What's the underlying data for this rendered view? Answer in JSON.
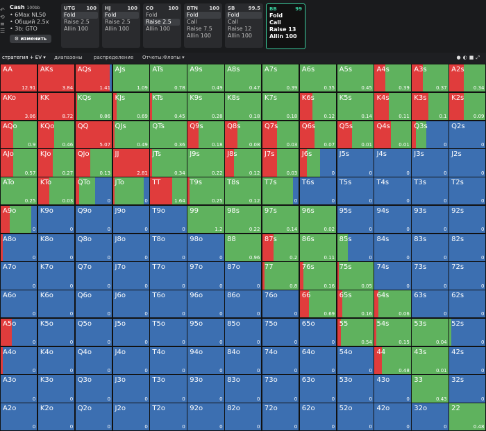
{
  "colors": {
    "raise": "#e03c3c",
    "call": "#5fb25e",
    "fold": "#3c6fb1"
  },
  "left_icons": [
    "undo-icon",
    "history-icon",
    "layers-icon",
    "menu-icon"
  ],
  "sim": {
    "title": "Cash",
    "stack": "100bb",
    "lines": [
      "• 6Max NL50",
      "• Общий 2.5x",
      "• 3b: GTO"
    ],
    "change": "изменить"
  },
  "positions": [
    {
      "name": "UTG",
      "stack": "100",
      "actions": [
        "Fold",
        "Raise 2.5",
        "Allin 100"
      ],
      "sel": 0
    },
    {
      "name": "HJ",
      "stack": "100",
      "actions": [
        "Fold",
        "Raise 2.5",
        "Allin 100"
      ],
      "sel": 0
    },
    {
      "name": "CO",
      "stack": "100",
      "actions": [
        "Fold",
        "Raise 2.5",
        "Allin 100"
      ],
      "sel": 1
    },
    {
      "name": "BTN",
      "stack": "100",
      "actions": [
        "Fold",
        "Call",
        "Raise 7.5",
        "Allin 100"
      ],
      "sel": 0
    },
    {
      "name": "SB",
      "stack": "99.5",
      "actions": [
        "Fold",
        "Call",
        "Raise 12",
        "Allin 100"
      ],
      "sel": 0
    },
    {
      "name": "BB",
      "stack": "99",
      "actions": [
        "Fold",
        "Call",
        "Raise 13",
        "Allin 100"
      ],
      "sel": -1
    }
  ],
  "tabs": [
    "стратегия + EV ▾",
    "диапазоны",
    "распределение",
    "Отчеты:Флопы ▾"
  ],
  "cells": [
    [
      "AA",
      1,
      0,
      12.91
    ],
    [
      "AKs",
      1,
      0,
      3.84
    ],
    [
      "AQs",
      0.95,
      0,
      1.41
    ],
    [
      "AJs",
      0,
      1,
      1.09
    ],
    [
      "ATs",
      0,
      1,
      0.78
    ],
    [
      "A9s",
      0,
      1,
      0.49
    ],
    [
      "A8s",
      0,
      1,
      0.47
    ],
    [
      "A7s",
      0,
      1,
      0.39
    ],
    [
      "A6s",
      0,
      1,
      0.35
    ],
    [
      "A5s",
      0,
      1,
      0.45
    ],
    [
      "A4s",
      0.3,
      0.7,
      0.39
    ],
    [
      "A3s",
      0.3,
      0.7,
      0.37
    ],
    [
      "A2s",
      0.4,
      0.6,
      0.34
    ],
    [
      "AKo",
      1,
      0,
      3.06
    ],
    [
      "KK",
      1,
      0,
      8.72
    ],
    [
      "KQs",
      0.05,
      0.95,
      0.86
    ],
    [
      "KJs",
      0.1,
      0.9,
      0.69
    ],
    [
      "KTs",
      0.05,
      0.95,
      0.45
    ],
    [
      "K9s",
      0,
      1,
      0.28
    ],
    [
      "K8s",
      0,
      1,
      0.18
    ],
    [
      "K7s",
      0,
      1,
      0.18
    ],
    [
      "K6s",
      0.35,
      0.65,
      0.12
    ],
    [
      "K5s",
      0,
      1,
      0.14
    ],
    [
      "K4s",
      0.4,
      0.6,
      0.11
    ],
    [
      "K3s",
      0.45,
      0.55,
      0.1
    ],
    [
      "K2s",
      0.4,
      0.6,
      0.09
    ],
    [
      "AQo",
      0.35,
      0.65,
      0.9
    ],
    [
      "KQo",
      0.45,
      0.55,
      0.46
    ],
    [
      "QQ",
      1,
      0,
      5.07
    ],
    [
      "QJs",
      0.05,
      0.95,
      0.49
    ],
    [
      "QTs",
      0,
      1,
      0.36
    ],
    [
      "Q9s",
      0.3,
      0.7,
      0.18
    ],
    [
      "Q8s",
      0.35,
      0.65,
      0.08
    ],
    [
      "Q7s",
      0.4,
      0.6,
      0.03
    ],
    [
      "Q6s",
      0.4,
      0.6,
      0.07
    ],
    [
      "Q5s",
      0.4,
      0.6,
      0.01
    ],
    [
      "Q4s",
      0.45,
      0.55,
      0.01
    ],
    [
      "Q3s",
      0.1,
      0.3,
      0
    ],
    [
      "Q2s",
      0,
      0,
      0
    ],
    [
      "AJo",
      0.35,
      0.65,
      0.57
    ],
    [
      "KJo",
      0.4,
      0.6,
      0.27
    ],
    [
      "QJo",
      0.4,
      0.6,
      0.13
    ],
    [
      "JJ",
      1,
      0,
      2.81
    ],
    [
      "JTs",
      0.05,
      0.95,
      0.34
    ],
    [
      "J9s",
      0,
      1,
      0.22
    ],
    [
      "J8s",
      0.25,
      0.75,
      0.12
    ],
    [
      "J7s",
      0.4,
      0.6,
      0.03
    ],
    [
      "J6s",
      0.2,
      0.35,
      0
    ],
    [
      "J5s",
      0,
      0,
      0
    ],
    [
      "J4s",
      0,
      0,
      0
    ],
    [
      "J3s",
      0,
      0,
      0
    ],
    [
      "J2s",
      0,
      0,
      0
    ],
    [
      "ATo",
      0,
      1,
      0.25
    ],
    [
      "KTo",
      0.3,
      0.7,
      0.03
    ],
    [
      "QTo",
      0.1,
      0.45,
      0
    ],
    [
      "JTo",
      0.05,
      0.8,
      0
    ],
    [
      "TT",
      0.6,
      0.4,
      1.64
    ],
    [
      "T9s",
      0.05,
      0.95,
      0.25
    ],
    [
      "T8s",
      0,
      1,
      0.12
    ],
    [
      "T7s",
      0,
      0.85,
      0
    ],
    [
      "T6s",
      0,
      0,
      0
    ],
    [
      "T5s",
      0,
      0,
      0
    ],
    [
      "T4s",
      0,
      0,
      0
    ],
    [
      "T3s",
      0,
      0,
      0
    ],
    [
      "T2s",
      0,
      0,
      0
    ],
    [
      "A9o",
      0.25,
      0.6,
      0
    ],
    [
      "K9o",
      0,
      0,
      0
    ],
    [
      "Q9o",
      0,
      0,
      0
    ],
    [
      "J9o",
      0,
      0,
      0
    ],
    [
      "T9o",
      0,
      0,
      0
    ],
    [
      "99",
      0,
      1,
      1.2
    ],
    [
      "98s",
      0,
      1,
      0.22
    ],
    [
      "97s",
      0,
      1,
      0.14
    ],
    [
      "96s",
      0,
      1,
      0.02
    ],
    [
      "95s",
      0,
      0,
      0
    ],
    [
      "94s",
      0,
      0,
      0
    ],
    [
      "93s",
      0,
      0,
      0
    ],
    [
      "92s",
      0,
      0,
      0
    ],
    [
      "A8o",
      0.05,
      0,
      0
    ],
    [
      "K8o",
      0,
      0,
      0
    ],
    [
      "Q8o",
      0,
      0,
      0
    ],
    [
      "J8o",
      0,
      0,
      0
    ],
    [
      "T8o",
      0,
      0,
      0
    ],
    [
      "98o",
      0,
      0,
      0
    ],
    [
      "88",
      0,
      1,
      0.96
    ],
    [
      "87s",
      0.3,
      0.7,
      0.2
    ],
    [
      "86s",
      0,
      1,
      0.11
    ],
    [
      "85s",
      0,
      0.3,
      0
    ],
    [
      "84s",
      0,
      0,
      0
    ],
    [
      "83s",
      0,
      0,
      0
    ],
    [
      "82s",
      0,
      0,
      0
    ],
    [
      "A7o",
      0,
      0,
      0
    ],
    [
      "K7o",
      0,
      0,
      0
    ],
    [
      "Q7o",
      0,
      0,
      0
    ],
    [
      "J7o",
      0,
      0,
      0
    ],
    [
      "T7o",
      0,
      0,
      0
    ],
    [
      "97o",
      0,
      0,
      0
    ],
    [
      "87o",
      0,
      0,
      0
    ],
    [
      "77",
      0.05,
      0.95,
      0.8
    ],
    [
      "76s",
      0.1,
      0.9,
      0.16
    ],
    [
      "75s",
      0.05,
      0.95,
      0.05
    ],
    [
      "74s",
      0,
      0,
      0
    ],
    [
      "73s",
      0,
      0,
      0
    ],
    [
      "72s",
      0,
      0,
      0
    ],
    [
      "A6o",
      0,
      0,
      0
    ],
    [
      "K6o",
      0,
      0,
      0
    ],
    [
      "Q6o",
      0,
      0,
      0
    ],
    [
      "J6o",
      0,
      0,
      0
    ],
    [
      "T6o",
      0,
      0,
      0
    ],
    [
      "96o",
      0,
      0,
      0
    ],
    [
      "86o",
      0,
      0,
      0
    ],
    [
      "76o",
      0,
      0,
      0
    ],
    [
      "66",
      0.25,
      0.75,
      0.69
    ],
    [
      "65s",
      0.15,
      0.85,
      0.16
    ],
    [
      "64s",
      0.1,
      0.9,
      0.06
    ],
    [
      "63s",
      0,
      0,
      0
    ],
    [
      "62s",
      0,
      0,
      0
    ],
    [
      "A5o",
      0.3,
      0,
      0
    ],
    [
      "K5o",
      0,
      0,
      0
    ],
    [
      "Q5o",
      0,
      0,
      0
    ],
    [
      "J5o",
      0,
      0,
      0
    ],
    [
      "T5o",
      0,
      0,
      0
    ],
    [
      "95o",
      0,
      0,
      0
    ],
    [
      "85o",
      0,
      0,
      0
    ],
    [
      "75o",
      0,
      0,
      0
    ],
    [
      "65o",
      0,
      0,
      0
    ],
    [
      "55",
      0.1,
      0.9,
      0.54
    ],
    [
      "54s",
      0.05,
      0.95,
      0.15
    ],
    [
      "53s",
      0,
      1,
      0.04
    ],
    [
      "52s",
      0,
      0.05,
      0
    ],
    [
      "A4o",
      0.05,
      0,
      0
    ],
    [
      "K4o",
      0,
      0,
      0
    ],
    [
      "Q4o",
      0,
      0,
      0
    ],
    [
      "J4o",
      0,
      0,
      0
    ],
    [
      "T4o",
      0,
      0,
      0
    ],
    [
      "94o",
      0,
      0,
      0
    ],
    [
      "84o",
      0,
      0,
      0
    ],
    [
      "74o",
      0,
      0,
      0
    ],
    [
      "64o",
      0,
      0,
      0
    ],
    [
      "54o",
      0,
      0,
      0
    ],
    [
      "44",
      0.2,
      0.8,
      0.48
    ],
    [
      "43s",
      0,
      1,
      0.01
    ],
    [
      "42s",
      0,
      0,
      0
    ],
    [
      "A3o",
      0,
      0,
      0
    ],
    [
      "K3o",
      0,
      0,
      0
    ],
    [
      "Q3o",
      0,
      0,
      0
    ],
    [
      "J3o",
      0,
      0,
      0
    ],
    [
      "T3o",
      0,
      0,
      0
    ],
    [
      "93o",
      0,
      0,
      0
    ],
    [
      "83o",
      0,
      0,
      0
    ],
    [
      "73o",
      0,
      0,
      0
    ],
    [
      "63o",
      0,
      0,
      0
    ],
    [
      "53o",
      0,
      0,
      0
    ],
    [
      "43o",
      0,
      0,
      0
    ],
    [
      "33",
      0,
      1,
      0.43
    ],
    [
      "32s",
      0,
      0,
      0
    ],
    [
      "A2o",
      0,
      0,
      0
    ],
    [
      "K2o",
      0,
      0,
      0
    ],
    [
      "Q2o",
      0,
      0,
      0
    ],
    [
      "J2o",
      0,
      0,
      0
    ],
    [
      "T2o",
      0,
      0,
      0
    ],
    [
      "92o",
      0,
      0,
      0
    ],
    [
      "82o",
      0,
      0,
      0
    ],
    [
      "72o",
      0,
      0,
      0
    ],
    [
      "62o",
      0,
      0,
      0
    ],
    [
      "52o",
      0,
      0,
      0
    ],
    [
      "42o",
      0,
      0,
      0
    ],
    [
      "32o",
      0,
      0,
      0
    ],
    [
      "22",
      0,
      1,
      0.48
    ]
  ]
}
